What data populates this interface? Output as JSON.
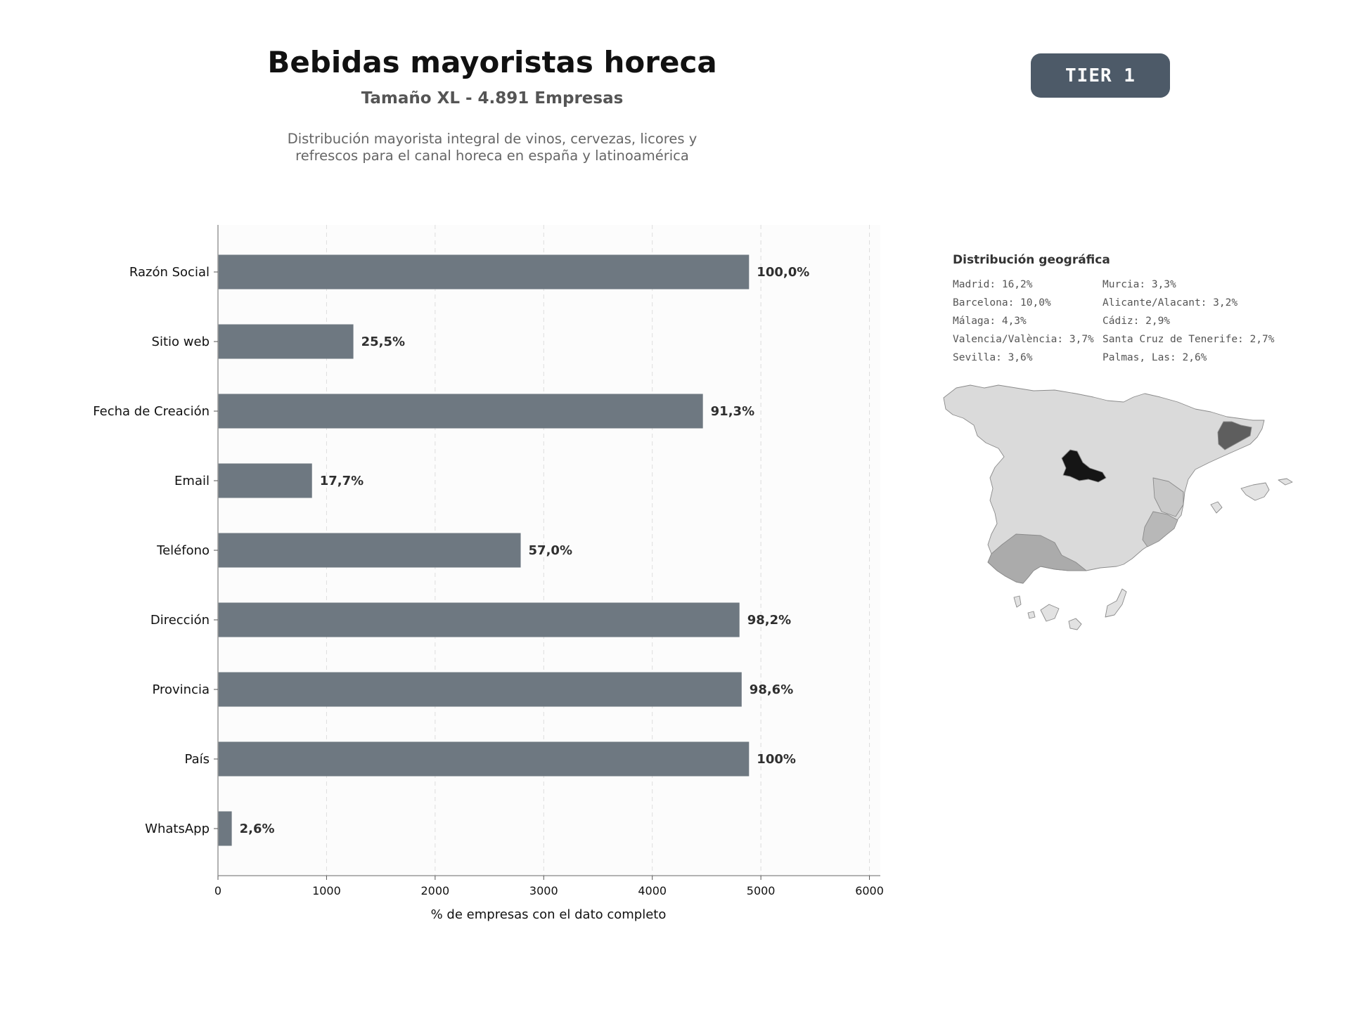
{
  "header": {
    "title": "Bebidas mayoristas horeca",
    "subtitle": "Tamaño XL - 4.891 Empresas",
    "description_line1": "Distribución mayorista integral de vinos, cervezas, licores y",
    "description_line2": "refrescos para el canal horeca en españa y latinoamérica",
    "tier": "TIER 1"
  },
  "colors": {
    "bar": "#6e7881",
    "badge": "#4d5a68",
    "plot_background": "#fcfcfc",
    "map_highest": "#151515",
    "map_second": "#5e5e5e",
    "map_mid": "#ababab",
    "map_low": "#dadada"
  },
  "chart_data": {
    "type": "bar",
    "orientation": "horizontal",
    "categories": [
      "Razón Social",
      "Sitio web",
      "Fecha de Creación",
      "Email",
      "Teléfono",
      "Dirección",
      "Provincia",
      "País",
      "WhatsApp"
    ],
    "values": [
      4891,
      1247,
      4466,
      866,
      2788,
      4803,
      4823,
      4891,
      127
    ],
    "value_labels": [
      "100,0%",
      "25,5%",
      "91,3%",
      "17,7%",
      "57,0%",
      "98,2%",
      "98,6%",
      "100%",
      "2,6%"
    ],
    "xlabel": "% de empresas con el dato completo",
    "ylabel": "",
    "xlim": [
      0,
      6100
    ],
    "xticks": [
      0,
      1000,
      2000,
      3000,
      4000,
      5000,
      6000
    ],
    "grid": "vertical dashed"
  },
  "geo": {
    "title": "Distribución geográfica",
    "left_column": [
      "Madrid: 16,2%",
      "Barcelona: 10,0%",
      "Málaga: 4,3%",
      "Valencia/València: 3,7%",
      "Sevilla: 3,6%"
    ],
    "right_column": [
      "Murcia: 3,3%",
      "Alicante/Alacant: 3,2%",
      "Cádiz: 2,9%",
      "Santa Cruz de Tenerife: 2,7%",
      "Palmas, Las: 2,6%"
    ]
  }
}
